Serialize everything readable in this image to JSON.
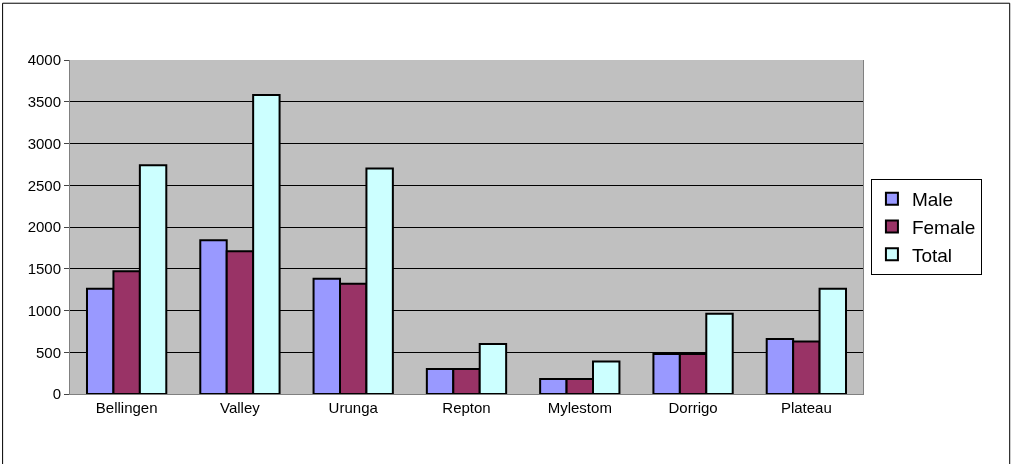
{
  "chart_data": {
    "type": "bar",
    "categories": [
      "Bellingen",
      "Valley",
      "Urunga",
      "Repton",
      "Mylestom",
      "Dorrigo",
      "Plateau"
    ],
    "series": [
      {
        "name": "Male",
        "color": "#9999ff",
        "values": [
          1260,
          1840,
          1380,
          300,
          180,
          480,
          660
        ]
      },
      {
        "name": "Female",
        "color": "#993366",
        "values": [
          1470,
          1710,
          1320,
          300,
          180,
          480,
          630
        ]
      },
      {
        "name": "Total",
        "color": "#ccffff",
        "values": [
          2740,
          3580,
          2700,
          600,
          390,
          960,
          1260
        ]
      }
    ],
    "ylim": [
      0,
      4000
    ],
    "yticks": [
      0,
      500,
      1000,
      1500,
      2000,
      2500,
      3000,
      3500,
      4000
    ],
    "grid": "y",
    "legend": "right"
  }
}
